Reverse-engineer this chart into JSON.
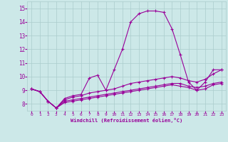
{
  "xlabel": "Windchill (Refroidissement éolien,°C)",
  "background_color": "#cce8e8",
  "grid_color": "#aacccc",
  "line_color": "#990099",
  "xlim": [
    -0.5,
    23.5
  ],
  "ylim": [
    7.5,
    15.5
  ],
  "xticks": [
    0,
    1,
    2,
    3,
    4,
    5,
    6,
    7,
    8,
    9,
    10,
    11,
    12,
    13,
    14,
    15,
    16,
    17,
    18,
    19,
    20,
    21,
    22,
    23
  ],
  "yticks": [
    8,
    9,
    10,
    11,
    12,
    13,
    14,
    15
  ],
  "series": [
    [
      9.1,
      8.9,
      8.2,
      7.7,
      8.4,
      8.6,
      8.7,
      9.9,
      10.1,
      9.0,
      10.5,
      12.0,
      14.0,
      14.6,
      14.8,
      14.8,
      14.7,
      13.5,
      11.6,
      9.6,
      9.0,
      9.6,
      10.5,
      10.5
    ],
    [
      9.1,
      8.9,
      8.2,
      7.7,
      8.3,
      8.5,
      8.6,
      8.8,
      8.9,
      9.0,
      9.1,
      9.3,
      9.5,
      9.6,
      9.7,
      9.8,
      9.9,
      10.0,
      9.9,
      9.7,
      9.6,
      9.8,
      10.2,
      10.5
    ],
    [
      9.1,
      8.9,
      8.2,
      7.7,
      8.2,
      8.3,
      8.4,
      8.5,
      8.6,
      8.7,
      8.8,
      8.9,
      9.0,
      9.1,
      9.2,
      9.3,
      9.4,
      9.5,
      9.5,
      9.3,
      9.2,
      9.3,
      9.5,
      9.6
    ],
    [
      9.1,
      8.9,
      8.2,
      7.7,
      8.1,
      8.2,
      8.3,
      8.4,
      8.5,
      8.6,
      8.7,
      8.8,
      8.9,
      9.0,
      9.1,
      9.2,
      9.3,
      9.4,
      9.3,
      9.2,
      9.0,
      9.1,
      9.4,
      9.5
    ]
  ],
  "marker": "+",
  "markersize": 3,
  "linewidth": 0.8
}
